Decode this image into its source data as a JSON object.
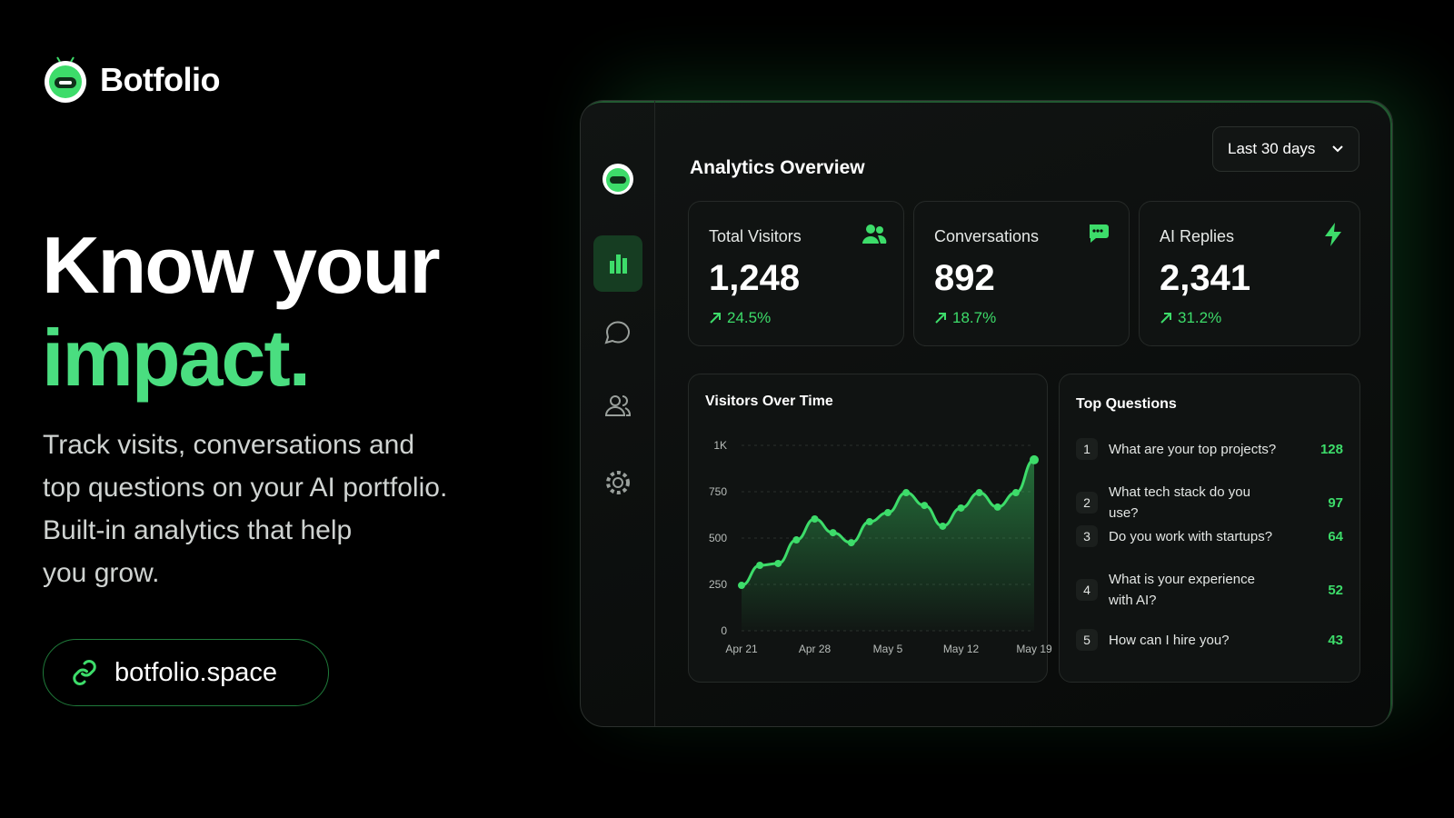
{
  "brand": {
    "name": "Botfolio"
  },
  "hero": {
    "headline": "Know your",
    "highlight": "impact.",
    "description": [
      "Track visits, conversations and",
      "top questions on your AI portfolio.",
      "Built-in analytics that help",
      "you grow."
    ],
    "link": "botfolio.space"
  },
  "dashboard": {
    "title": "Analytics Overview",
    "range": "Last 30 days",
    "stats": [
      {
        "label": "Total Visitors",
        "value": "1,248",
        "change": "24.5%"
      },
      {
        "label": "Conversations",
        "value": "892",
        "change": "18.7%"
      },
      {
        "label": "AI Replies",
        "value": "2,341",
        "change": "31.2%"
      }
    ],
    "chart": {
      "type": "line",
      "title": "Visitors Over Time",
      "categories": [
        "Apr 21",
        null,
        null,
        null,
        "Apr 28",
        null,
        null,
        null,
        "May 5",
        null,
        null,
        null,
        "May 12",
        null,
        null,
        null,
        "May 19"
      ],
      "values": [
        245,
        353,
        363,
        490,
        603,
        529,
        475,
        588,
        637,
        745,
        676,
        564,
        662,
        745,
        667,
        745,
        922
      ],
      "color": "#3ddc6a",
      "ylim": [
        0,
        1000
      ],
      "yticks": [
        0,
        250,
        500,
        750,
        {
          "value": 1000,
          "label": "1K"
        }
      ],
      "grid": true
    },
    "questions": {
      "title": "Top Questions",
      "rows": [
        {
          "rank": 1,
          "text": "What are your top projects?",
          "count": 128
        },
        {
          "rank": 2,
          "text": "What tech stack do you use?",
          "count": 97
        },
        {
          "rank": 3,
          "text": "Do you work with startups?",
          "count": 64
        },
        {
          "rank": 4,
          "text": "What is your experience with AI?",
          "count": 52
        },
        {
          "rank": 5,
          "text": "How can I hire you?",
          "count": 43
        }
      ]
    }
  }
}
